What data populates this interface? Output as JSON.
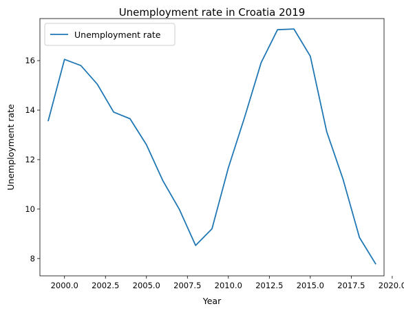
{
  "chart_data": {
    "type": "line",
    "title": "Unemployment rate in Croatia 2019",
    "xlabel": "Year",
    "ylabel": "Unemployment rate",
    "xlim": [
      1998.5,
      2019.5
    ],
    "ylim": [
      7.3,
      17.7
    ],
    "x_ticks": [
      2000.0,
      2002.5,
      2005.0,
      2007.5,
      2010.0,
      2012.5,
      2015.0,
      2017.5,
      2020.0
    ],
    "x_tick_labels": [
      "2000.0",
      "2002.5",
      "2005.0",
      "2007.5",
      "2010.0",
      "2012.5",
      "2015.0",
      "2017.5",
      "2020.0"
    ],
    "y_ticks": [
      8,
      10,
      12,
      14,
      16
    ],
    "y_tick_labels": [
      "8",
      "10",
      "12",
      "14",
      "16"
    ],
    "grid": false,
    "legend_position": "top-left",
    "series": [
      {
        "name": "Unemployment rate",
        "color": "#1f77b4",
        "x": [
          1999,
          2000,
          2001,
          2002,
          2003,
          2004,
          2005,
          2006,
          2007,
          2008,
          2009,
          2010,
          2011,
          2012,
          2013,
          2014,
          2015,
          2016,
          2017,
          2018,
          2019
        ],
        "y": [
          13.55,
          16.05,
          15.8,
          15.05,
          13.92,
          13.65,
          12.6,
          11.15,
          10.0,
          8.53,
          9.2,
          11.67,
          13.73,
          15.92,
          17.25,
          17.28,
          16.18,
          13.13,
          11.2,
          8.85,
          7.77
        ]
      }
    ]
  }
}
